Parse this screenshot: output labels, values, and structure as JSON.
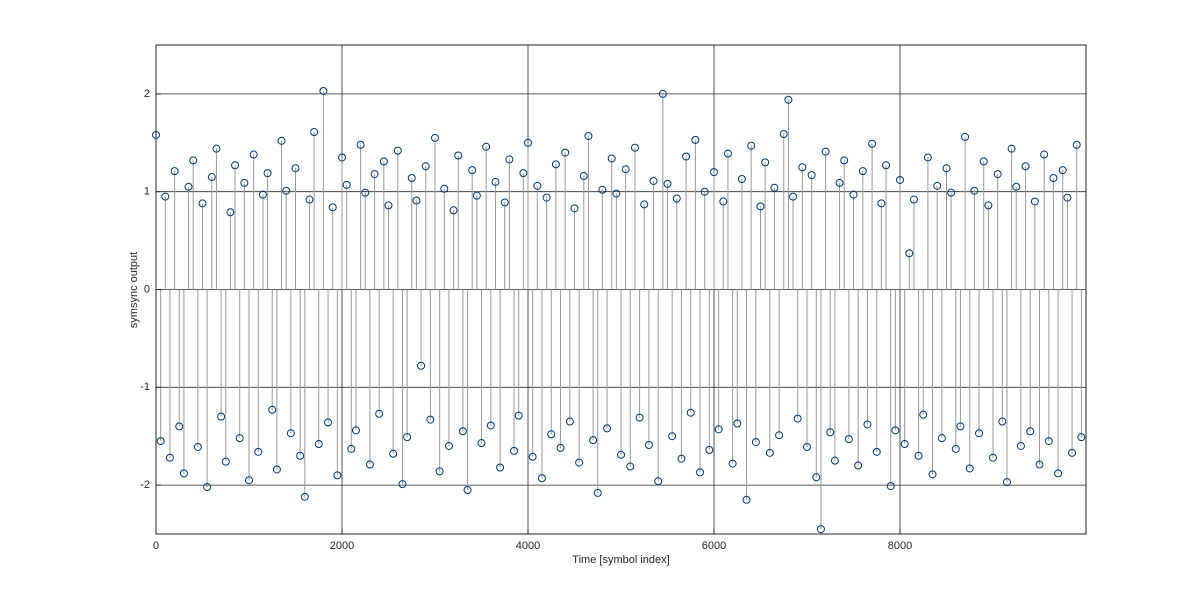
{
  "chart_data": {
    "type": "stem",
    "x_label": "Time [symbol index]",
    "y_label": "symsync output",
    "xlim": [
      0,
      10000
    ],
    "ylim": [
      -2.5,
      2.5
    ],
    "xticks": [
      0,
      2000,
      4000,
      6000,
      8000
    ],
    "yticks": [
      -2,
      -1,
      0,
      1,
      2
    ],
    "grid": true,
    "marker_color": "#003a70",
    "stem_color": "#999999",
    "x": [
      0,
      50,
      100,
      150,
      200,
      250,
      300,
      350,
      400,
      450,
      500,
      550,
      600,
      650,
      700,
      750,
      800,
      850,
      900,
      950,
      1000,
      1050,
      1100,
      1150,
      1200,
      1250,
      1300,
      1350,
      1400,
      1450,
      1500,
      1550,
      1600,
      1650,
      1700,
      1750,
      1800,
      1850,
      1900,
      1950,
      2000,
      2050,
      2100,
      2150,
      2200,
      2250,
      2300,
      2350,
      2400,
      2450,
      2500,
      2550,
      2600,
      2650,
      2700,
      2750,
      2800,
      2850,
      2900,
      2950,
      3000,
      3050,
      3100,
      3150,
      3200,
      3250,
      3300,
      3350,
      3400,
      3450,
      3500,
      3550,
      3600,
      3650,
      3700,
      3750,
      3800,
      3850,
      3900,
      3950,
      4000,
      4050,
      4100,
      4150,
      4200,
      4250,
      4300,
      4350,
      4400,
      4450,
      4500,
      4550,
      4600,
      4650,
      4700,
      4750,
      4800,
      4850,
      4900,
      4950,
      5000,
      5050,
      5100,
      5150,
      5200,
      5250,
      5300,
      5350,
      5400,
      5450,
      5500,
      5550,
      5600,
      5650,
      5700,
      5750,
      5800,
      5850,
      5900,
      5950,
      6000,
      6050,
      6100,
      6150,
      6200,
      6250,
      6300,
      6350,
      6400,
      6450,
      6500,
      6550,
      6600,
      6650,
      6700,
      6750,
      6800,
      6850,
      6900,
      6950,
      7000,
      7050,
      7100,
      7150,
      7200,
      7250,
      7300,
      7350,
      7400,
      7450,
      7500,
      7550,
      7600,
      7650,
      7700,
      7750,
      7800,
      7850,
      7900,
      7950,
      8000,
      8050,
      8100,
      8150,
      8200,
      8250,
      8300,
      8350,
      8400,
      8450,
      8500,
      8550,
      8600,
      8650,
      8700,
      8750,
      8800,
      8850,
      8900,
      8950,
      9000,
      9050,
      9100,
      9150,
      9200,
      9250,
      9300,
      9350,
      9400,
      9450,
      9500,
      9550,
      9600,
      9650,
      9700,
      9750,
      9800,
      9850,
      9900,
      9950
    ],
    "values": [
      1.58,
      -1.55,
      0.95,
      -1.72,
      1.21,
      -1.4,
      -1.88,
      1.05,
      1.32,
      -1.61,
      0.88,
      -2.02,
      1.15,
      1.44,
      -1.3,
      -1.76,
      0.79,
      1.27,
      -1.52,
      1.09,
      -1.95,
      1.38,
      -1.66,
      0.97,
      1.19,
      -1.23,
      -1.84,
      1.52,
      1.01,
      -1.47,
      1.24,
      -1.7,
      -2.12,
      0.92,
      1.61,
      -1.58,
      2.03,
      -1.36,
      0.84,
      -1.9,
      1.35,
      1.07,
      -1.63,
      -1.44,
      1.48,
      0.99,
      -1.79,
      1.18,
      -1.27,
      1.31,
      0.86,
      -1.68,
      1.42,
      -1.99,
      -1.51,
      1.14,
      0.91,
      -0.78,
      1.26,
      -1.33,
      1.55,
      -1.86,
      1.03,
      -1.6,
      0.81,
      1.37,
      -1.45,
      -2.05,
      1.22,
      0.96,
      -1.57,
      1.46,
      -1.39,
      1.1,
      -1.82,
      0.89,
      1.33,
      -1.65,
      -1.29,
      1.19,
      1.5,
      -1.71,
      1.06,
      -1.93,
      0.94,
      -1.48,
      1.28,
      -1.62,
      1.4,
      -1.35,
      0.83,
      -1.77,
      1.16,
      1.57,
      -1.54,
      -2.08,
      1.02,
      -1.42,
      1.34,
      0.98,
      -1.69,
      1.23,
      -1.81,
      1.45,
      -1.31,
      0.87,
      -1.59,
      1.11,
      -1.96,
      2.0,
      1.08,
      -1.5,
      0.93,
      -1.73,
      1.36,
      -1.26,
      1.53,
      -1.87,
      1.0,
      -1.64,
      1.2,
      -1.43,
      0.9,
      1.39,
      -1.78,
      -1.37,
      1.13,
      -2.15,
      1.47,
      -1.56,
      0.85,
      1.3,
      -1.67,
      1.04,
      -1.49,
      1.59,
      1.94,
      0.95,
      -1.32,
      1.25,
      -1.61,
      1.17,
      -1.92,
      -2.45,
      1.41,
      -1.46,
      -1.75,
      1.09,
      1.32,
      -1.53,
      0.97,
      -1.8,
      1.21,
      -1.38,
      1.49,
      -1.66,
      0.88,
      1.27,
      -2.01,
      -1.44,
      1.12,
      -1.58,
      0.37,
      0.92,
      -1.7,
      -1.28,
      1.35,
      -1.89,
      1.06,
      -1.52,
      1.24,
      0.99,
      -1.63,
      -1.4,
      1.56,
      -1.83,
      1.01,
      -1.47,
      1.31,
      0.86,
      -1.72,
      1.18,
      -1.35,
      -1.97,
      1.44,
      1.05,
      -1.6,
      1.26,
      -1.45,
      0.9,
      -1.79,
      1.38,
      -1.55,
      1.14,
      -1.88,
      1.22,
      0.94,
      -1.67,
      1.48,
      -1.51
    ]
  }
}
